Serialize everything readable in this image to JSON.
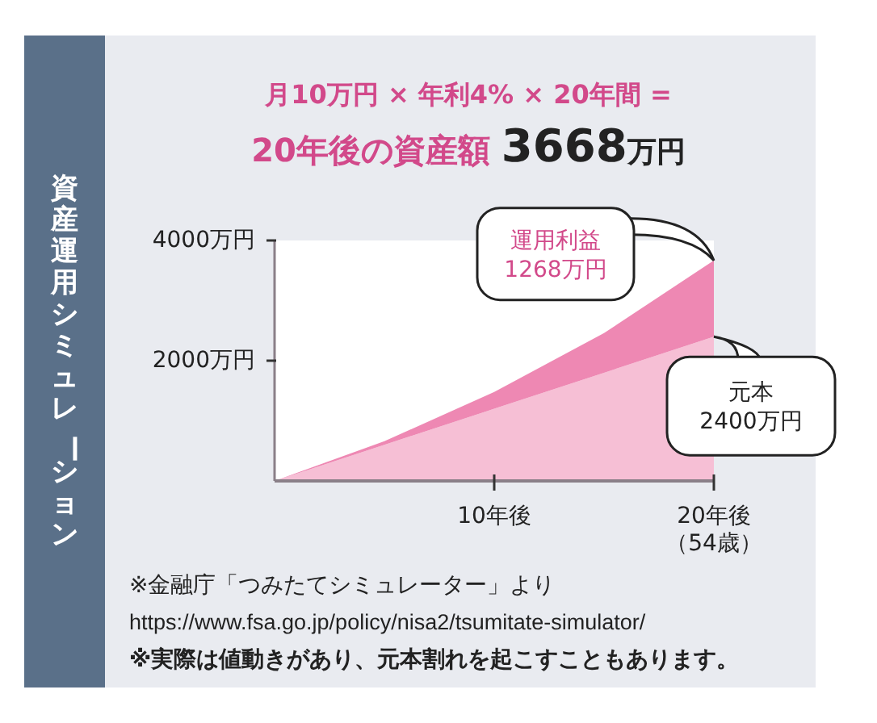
{
  "chart_data": {
    "type": "area",
    "stacked": true,
    "title": "資産運用シミュレーション",
    "subtitle": "月10万円 × 年利4% × 20年間 =\n20年後の資産額 3668万円",
    "categories": [
      null,
      null,
      "10年後",
      null,
      "20年後（54歳）"
    ],
    "series": [
      {
        "color": "#f6bfd5",
        "values": [
          0,
          600,
          1200,
          1800,
          2400
        ]
      },
      {
        "color": "#ee88b3",
        "values": [
          0,
          60,
          280,
          660,
          1268
        ]
      }
    ],
    "ylim": [
      0,
      4000
    ],
    "yticks": [
      {
        "value": 2000,
        "label": "2000万円"
      },
      {
        "value": 4000,
        "label": "4000万円"
      }
    ],
    "grid": false,
    "annotations": [
      {
        "text": "運用利益\n1268万円",
        "x": "20年後（54歳）",
        "y": 3668
      },
      {
        "text": "元本\n2400万円",
        "x": "20年後（54歳）",
        "y": 2400
      },
      "※金融庁「つみたてシミュレーター」より",
      "https://www.fsa.go.jp/policy/nisa2/tsumitate-simulator/",
      "※実際は値動きがあり、元本割れを起こすこともあります。"
    ]
  }
}
